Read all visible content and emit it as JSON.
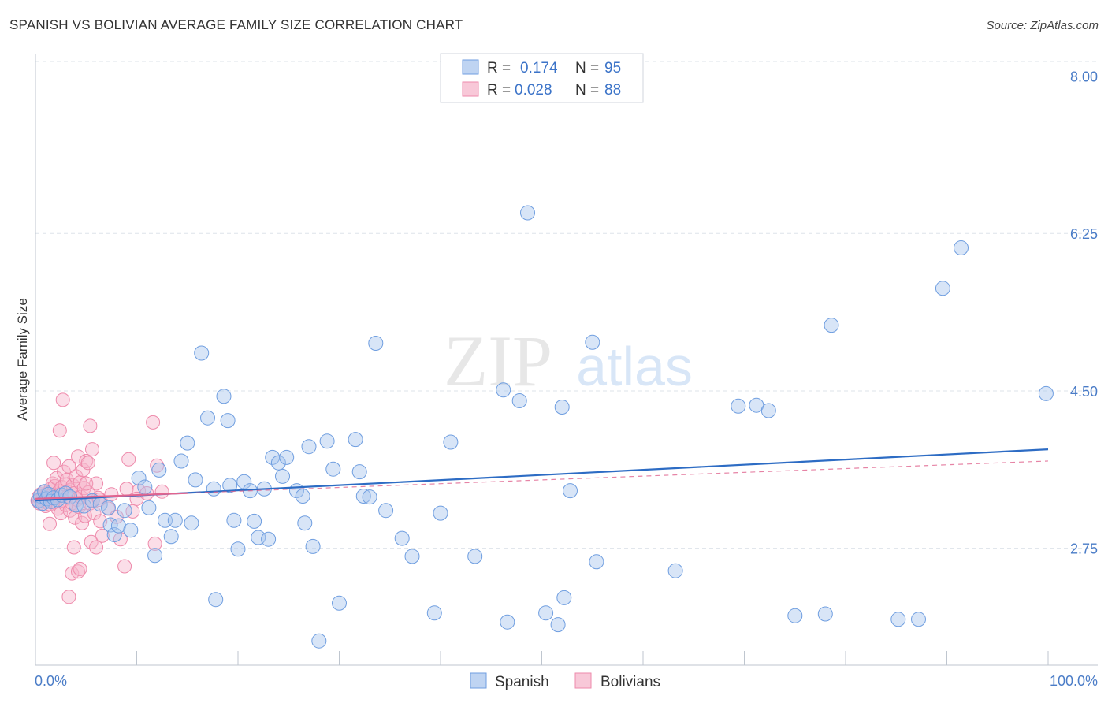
{
  "header": {
    "title": "SPANISH VS BOLIVIAN AVERAGE FAMILY SIZE CORRELATION CHART",
    "source": "Source: ZipAtlas.com"
  },
  "watermark": {
    "zip": "ZIP",
    "atlas": "atlas"
  },
  "colors": {
    "spanish_fill": "#a9c6ee",
    "spanish_stroke": "#6f9ee0",
    "spanish_line": "#2d6cc4",
    "bolivian_fill": "#f6b6cb",
    "bolivian_stroke": "#ee8aab",
    "bolivian_line": "#e0648f",
    "grid": "#dde3ea",
    "axis_label": "#4a7cc7"
  },
  "legend": {
    "rows": [
      {
        "r_label": "R =",
        "r_value": "0.174",
        "n_label": "N =",
        "n_value": "95"
      },
      {
        "r_label": "R =",
        "r_value": "0.028",
        "n_label": "N =",
        "n_value": "88"
      }
    ]
  },
  "chart_data": {
    "type": "scatter",
    "title": "SPANISH VS BOLIVIAN AVERAGE FAMILY SIZE CORRELATION CHART",
    "xlabel": "",
    "ylabel": "Average Family Size",
    "xlim": [
      0,
      100
    ],
    "ylim": [
      1.45,
      8.25
    ],
    "x_tick_labels": [
      "0.0%",
      "100.0%"
    ],
    "y_ticks": [
      2.75,
      4.5,
      6.25,
      8.0
    ],
    "y_tick_labels": [
      "2.75",
      "4.50",
      "6.25",
      "8.00"
    ],
    "legend_position": "top-center",
    "series": [
      {
        "name": "Spanish",
        "r": 0.174,
        "n": 95,
        "trend": {
          "x": [
            0,
            100
          ],
          "y": [
            3.28,
            3.85
          ]
        },
        "points": [
          [
            0.3,
            3.28
          ],
          [
            0.5,
            3.33
          ],
          [
            0.7,
            3.25
          ],
          [
            0.9,
            3.38
          ],
          [
            1.1,
            3.3
          ],
          [
            1.3,
            3.35
          ],
          [
            1.5,
            3.27
          ],
          [
            1.8,
            3.31
          ],
          [
            2.2,
            3.29
          ],
          [
            2.6,
            3.34
          ],
          [
            3.0,
            3.36
          ],
          [
            3.4,
            3.32
          ],
          [
            4.0,
            3.23
          ],
          [
            4.8,
            3.22
          ],
          [
            5.6,
            3.28
          ],
          [
            6.4,
            3.24
          ],
          [
            7.2,
            3.2
          ],
          [
            7.4,
            3.01
          ],
          [
            7.8,
            2.9
          ],
          [
            8.2,
            3.0
          ],
          [
            8.8,
            3.17
          ],
          [
            9.4,
            2.95
          ],
          [
            10.2,
            3.53
          ],
          [
            10.8,
            3.43
          ],
          [
            11.2,
            3.2
          ],
          [
            11.8,
            2.67
          ],
          [
            12.2,
            3.62
          ],
          [
            12.8,
            3.06
          ],
          [
            13.4,
            2.88
          ],
          [
            13.8,
            3.06
          ],
          [
            14.4,
            3.72
          ],
          [
            15.0,
            3.92
          ],
          [
            15.4,
            3.03
          ],
          [
            15.8,
            3.51
          ],
          [
            16.4,
            4.92
          ],
          [
            17.0,
            4.2
          ],
          [
            17.6,
            3.41
          ],
          [
            17.8,
            2.18
          ],
          [
            18.6,
            4.44
          ],
          [
            19.0,
            4.17
          ],
          [
            19.2,
            3.45
          ],
          [
            19.6,
            3.06
          ],
          [
            20.0,
            2.74
          ],
          [
            20.6,
            3.49
          ],
          [
            21.2,
            3.39
          ],
          [
            21.6,
            3.05
          ],
          [
            22.0,
            2.87
          ],
          [
            22.6,
            3.41
          ],
          [
            23.0,
            2.85
          ],
          [
            23.4,
            3.76
          ],
          [
            24.0,
            3.7
          ],
          [
            24.4,
            3.55
          ],
          [
            24.8,
            3.76
          ],
          [
            25.8,
            3.39
          ],
          [
            26.4,
            3.33
          ],
          [
            26.6,
            3.03
          ],
          [
            27.0,
            3.88
          ],
          [
            27.4,
            2.77
          ],
          [
            28.0,
            1.72
          ],
          [
            28.8,
            3.94
          ],
          [
            29.4,
            3.63
          ],
          [
            30.0,
            2.14
          ],
          [
            31.6,
            3.96
          ],
          [
            32.0,
            3.6
          ],
          [
            32.4,
            3.33
          ],
          [
            33.0,
            3.32
          ],
          [
            33.6,
            5.03
          ],
          [
            34.6,
            3.17
          ],
          [
            36.2,
            2.86
          ],
          [
            37.2,
            2.66
          ],
          [
            39.4,
            2.03
          ],
          [
            40.0,
            3.14
          ],
          [
            41.0,
            3.93
          ],
          [
            43.4,
            2.66
          ],
          [
            46.2,
            4.51
          ],
          [
            46.6,
            1.93
          ],
          [
            47.8,
            4.39
          ],
          [
            48.6,
            6.48
          ],
          [
            50.4,
            2.03
          ],
          [
            51.6,
            1.9
          ],
          [
            52.0,
            4.32
          ],
          [
            52.2,
            2.2
          ],
          [
            52.8,
            3.39
          ],
          [
            55.0,
            5.04
          ],
          [
            55.4,
            2.6
          ],
          [
            63.2,
            2.5
          ],
          [
            69.4,
            4.33
          ],
          [
            71.2,
            4.34
          ],
          [
            72.4,
            4.28
          ],
          [
            75.0,
            2.0
          ],
          [
            78.0,
            2.02
          ],
          [
            78.6,
            5.23
          ],
          [
            85.2,
            1.96
          ],
          [
            87.2,
            1.96
          ],
          [
            89.6,
            5.64
          ],
          [
            91.4,
            6.09
          ],
          [
            99.8,
            4.47
          ]
        ]
      },
      {
        "name": "Bolivians",
        "r": 0.028,
        "n": 88,
        "trend": {
          "x": [
            0,
            100
          ],
          "y": [
            3.3,
            3.72
          ]
        },
        "points": [
          [
            0.2,
            3.28
          ],
          [
            0.3,
            3.32
          ],
          [
            0.4,
            3.25
          ],
          [
            0.5,
            3.35
          ],
          [
            0.6,
            3.3
          ],
          [
            0.7,
            3.27
          ],
          [
            0.8,
            3.33
          ],
          [
            0.9,
            3.38
          ],
          [
            1.0,
            3.22
          ],
          [
            1.1,
            3.31
          ],
          [
            1.2,
            3.36
          ],
          [
            1.3,
            3.29
          ],
          [
            1.4,
            3.24
          ],
          [
            1.5,
            3.41
          ],
          [
            1.6,
            3.34
          ],
          [
            1.7,
            3.47
          ],
          [
            1.8,
            3.26
          ],
          [
            1.9,
            3.44
          ],
          [
            2.0,
            3.31
          ],
          [
            2.1,
            3.53
          ],
          [
            2.2,
            3.19
          ],
          [
            2.3,
            3.38
          ],
          [
            2.4,
            3.35
          ],
          [
            2.5,
            3.14
          ],
          [
            2.6,
            3.43
          ],
          [
            2.7,
            3.28
          ],
          [
            2.8,
            3.6
          ],
          [
            2.9,
            3.46
          ],
          [
            3.0,
            3.23
          ],
          [
            3.1,
            3.51
          ],
          [
            3.2,
            3.33
          ],
          [
            3.3,
            3.66
          ],
          [
            3.4,
            3.17
          ],
          [
            3.5,
            3.4
          ],
          [
            3.6,
            3.25
          ],
          [
            3.7,
            3.45
          ],
          [
            3.8,
            3.36
          ],
          [
            3.9,
            3.09
          ],
          [
            4.0,
            3.55
          ],
          [
            4.1,
            3.29
          ],
          [
            4.2,
            3.77
          ],
          [
            4.3,
            3.21
          ],
          [
            4.4,
            3.48
          ],
          [
            4.5,
            3.32
          ],
          [
            4.6,
            3.03
          ],
          [
            4.7,
            3.62
          ],
          [
            4.8,
            3.42
          ],
          [
            4.9,
            3.11
          ],
          [
            5.0,
            3.72
          ],
          [
            5.2,
            3.37
          ],
          [
            5.4,
            3.25
          ],
          [
            5.6,
            3.85
          ],
          [
            5.8,
            3.14
          ],
          [
            6.0,
            3.47
          ],
          [
            6.2,
            3.31
          ],
          [
            6.4,
            3.05
          ],
          [
            1.8,
            3.7
          ],
          [
            1.4,
            3.02
          ],
          [
            2.4,
            4.06
          ],
          [
            2.7,
            4.4
          ],
          [
            3.8,
            2.76
          ],
          [
            3.6,
            2.47
          ],
          [
            4.2,
            2.49
          ],
          [
            4.4,
            2.52
          ],
          [
            3.3,
            2.21
          ],
          [
            5.5,
            2.82
          ],
          [
            6.0,
            2.76
          ],
          [
            6.6,
            2.89
          ],
          [
            5.2,
            3.7
          ],
          [
            5.6,
            3.28
          ],
          [
            5.0,
            3.47
          ],
          [
            5.4,
            4.11
          ],
          [
            6.3,
            3.29
          ],
          [
            7.2,
            3.19
          ],
          [
            7.5,
            3.35
          ],
          [
            8.4,
            2.85
          ],
          [
            8.0,
            3.1
          ],
          [
            8.8,
            2.55
          ],
          [
            9.0,
            3.41
          ],
          [
            9.6,
            3.16
          ],
          [
            9.2,
            3.74
          ],
          [
            10.2,
            3.39
          ],
          [
            10.0,
            3.3
          ],
          [
            11.0,
            3.36
          ],
          [
            11.8,
            2.8
          ],
          [
            11.6,
            4.15
          ],
          [
            12.0,
            3.67
          ],
          [
            12.5,
            3.38
          ]
        ]
      }
    ]
  },
  "bottom_legend": {
    "items": [
      "Spanish",
      "Bolivians"
    ]
  }
}
